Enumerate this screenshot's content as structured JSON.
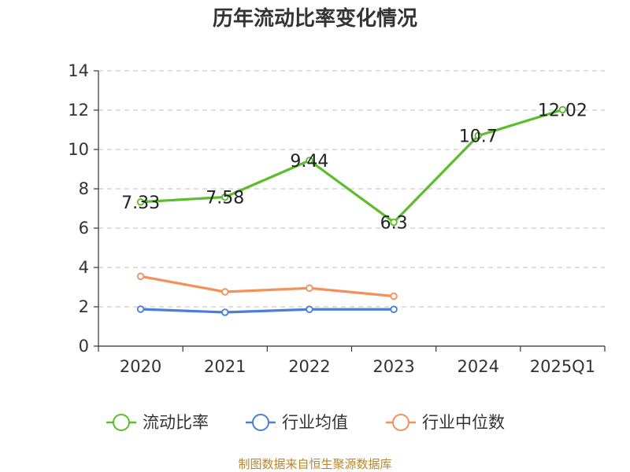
{
  "chart_data": {
    "type": "line",
    "title": "历年流动比率变化情况",
    "categories": [
      "2020",
      "2021",
      "2022",
      "2023",
      "2024",
      "2025Q1"
    ],
    "ylim": [
      0,
      14
    ],
    "yticks": [
      0,
      2,
      4,
      6,
      8,
      10,
      12,
      14
    ],
    "grid": true,
    "legend_position": "bottom",
    "series": [
      {
        "name": "流动比率",
        "color": "#5bbd2b",
        "values": [
          7.33,
          7.58,
          9.44,
          6.3,
          10.7,
          12.02
        ],
        "labels": [
          "7.33",
          "7.58",
          "9.44",
          "6.3",
          "10.7",
          "12.02"
        ]
      },
      {
        "name": "行业均值",
        "color": "#4a7fd6",
        "values": [
          1.88,
          1.72,
          1.87,
          1.87,
          null,
          null
        ]
      },
      {
        "name": "行业中位数",
        "color": "#f4905a",
        "values": [
          3.55,
          2.76,
          2.95,
          2.54,
          null,
          null
        ]
      }
    ]
  },
  "source": "制图数据来自恒生聚源数据库"
}
